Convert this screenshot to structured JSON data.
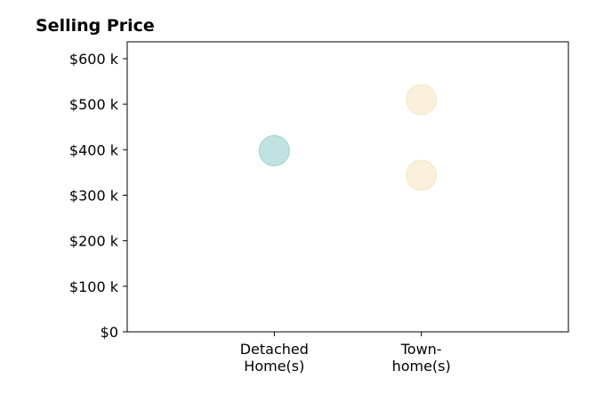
{
  "chart_data": {
    "type": "scatter",
    "title": "Selling Price",
    "xlabel": "",
    "ylabel": "",
    "categories": [
      {
        "lines": [
          "Detached",
          "Home(s)"
        ]
      },
      {
        "lines": [
          "Town-",
          "home(s)"
        ]
      }
    ],
    "y_ticks": [
      {
        "value": 0,
        "label": "$0"
      },
      {
        "value": 100,
        "label": "$100 k"
      },
      {
        "value": 200,
        "label": "$200 k"
      },
      {
        "value": 300,
        "label": "$300 k"
      },
      {
        "value": 400,
        "label": "$400 k"
      },
      {
        "value": 500,
        "label": "$500 k"
      },
      {
        "value": 600,
        "label": "$600 k"
      }
    ],
    "ylim": [
      0,
      637
    ],
    "xlim": [
      -1,
      2
    ],
    "grid": false,
    "legend": "none",
    "series": [
      {
        "category_index": 0,
        "color": "#8cccc8",
        "points": [
          {
            "x": 0,
            "y": 398
          }
        ]
      },
      {
        "category_index": 1,
        "color": "#f5e4c0",
        "points": [
          {
            "x": 1,
            "y": 510
          },
          {
            "x": 1,
            "y": 344
          }
        ]
      }
    ]
  }
}
